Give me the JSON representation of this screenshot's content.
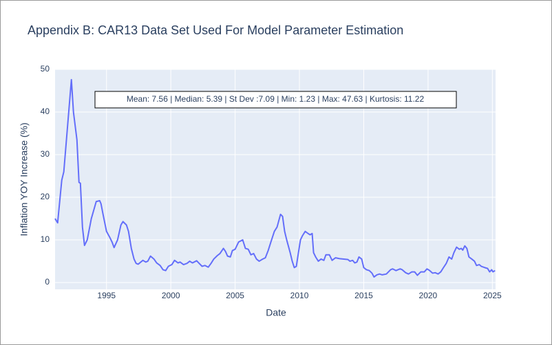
{
  "chart_data": {
    "type": "line",
    "title": "Appendix B: CAR13 Data Set Used For Model Parameter Estimation",
    "x_label": "Date",
    "y_label": "Inflation YOY Increase (%)",
    "annotation": "Mean: 7.56 | Median: 5.39 | St Dev :7.09 | Min: 1.23 | Max: 47.63 | Kurtosis: 11.22",
    "color": "#636efa",
    "grid": true,
    "xlim": [
      1991,
      2025.25
    ],
    "xticks": [
      1995,
      2000,
      2005,
      2010,
      2015,
      2020,
      2025
    ],
    "ylim": [
      -1.6,
      50
    ],
    "yticks": [
      0,
      10,
      20,
      30,
      40,
      50
    ],
    "x": [
      1991.0,
      1991.2,
      1991.52,
      1991.68,
      1992.27,
      1992.43,
      1992.7,
      1992.86,
      1992.97,
      1993.13,
      1993.29,
      1993.5,
      1993.82,
      1994.2,
      1994.47,
      1994.57,
      1994.73,
      1995.0,
      1995.27,
      1995.43,
      1995.59,
      1995.86,
      1996.12,
      1996.28,
      1996.55,
      1996.71,
      1996.93,
      1997.14,
      1997.3,
      1997.46,
      1997.83,
      1998.05,
      1998.21,
      1998.42,
      1998.69,
      1998.9,
      1999.17,
      1999.39,
      1999.6,
      1999.81,
      2000.08,
      2000.29,
      2000.56,
      2000.72,
      2000.99,
      2001.26,
      2001.47,
      2001.68,
      2002.01,
      2002.17,
      2002.43,
      2002.65,
      2002.91,
      2003.13,
      2003.34,
      2003.61,
      2003.82,
      2004.09,
      2004.25,
      2004.41,
      2004.63,
      2004.79,
      2005.0,
      2005.27,
      2005.59,
      2005.8,
      2006.02,
      2006.23,
      2006.44,
      2006.66,
      2006.87,
      2007.14,
      2007.35,
      2007.57,
      2007.78,
      2008.05,
      2008.26,
      2008.53,
      2008.69,
      2008.85,
      2009.01,
      2009.28,
      2009.44,
      2009.6,
      2009.76,
      2009.87,
      2010.08,
      2010.24,
      2010.45,
      2010.67,
      2010.83,
      2010.99,
      2011.1,
      2011.26,
      2011.47,
      2011.68,
      2011.9,
      2012.06,
      2012.33,
      2012.54,
      2012.81,
      2013.13,
      2013.45,
      2013.77,
      2013.93,
      2014.14,
      2014.3,
      2014.47,
      2014.63,
      2014.84,
      2015.0,
      2015.21,
      2015.43,
      2015.64,
      2015.8,
      2016.02,
      2016.23,
      2016.44,
      2016.76,
      2017.09,
      2017.25,
      2017.51,
      2017.83,
      2017.99,
      2018.26,
      2018.48,
      2018.74,
      2018.96,
      2019.17,
      2019.44,
      2019.71,
      2019.92,
      2020.13,
      2020.35,
      2020.56,
      2020.78,
      2020.99,
      2021.2,
      2021.42,
      2021.63,
      2021.84,
      2022.01,
      2022.22,
      2022.43,
      2022.59,
      2022.7,
      2022.86,
      2023.02,
      2023.18,
      2023.4,
      2023.61,
      2023.77,
      2023.98,
      2024.14,
      2024.41,
      2024.63,
      2024.79,
      2024.95,
      2025.05,
      2025.21
    ],
    "values": [
      15,
      14,
      24,
      26,
      47.6,
      40,
      33.5,
      23.5,
      23.3,
      13,
      8.7,
      10,
      15,
      19,
      19.2,
      18.5,
      16,
      12,
      10.5,
      9.5,
      8.2,
      10,
      13.5,
      14.3,
      13.5,
      12,
      8,
      5.5,
      4.5,
      4.3,
      5.2,
      4.8,
      5.0,
      6.2,
      5.5,
      4.6,
      4.0,
      3.0,
      2.8,
      3.8,
      4.2,
      5.2,
      4.6,
      4.8,
      4.2,
      4.5,
      5.0,
      4.6,
      5.1,
      4.6,
      3.8,
      4.0,
      3.6,
      4.5,
      5.5,
      6.3,
      6.8,
      8.0,
      7.3,
      6.2,
      6.0,
      7.5,
      7.8,
      9.5,
      10.0,
      8.0,
      7.8,
      6.5,
      6.8,
      5.5,
      5.0,
      5.5,
      5.8,
      7.5,
      9.5,
      12,
      13,
      16,
      15.5,
      12,
      10,
      7,
      5,
      3.5,
      3.8,
      6,
      10,
      11,
      12,
      11.5,
      11.2,
      11.5,
      7,
      6,
      5,
      5.5,
      5.2,
      6.5,
      6.5,
      5.2,
      5.8,
      5.6,
      5.5,
      5.4,
      5.0,
      5.2,
      4.6,
      4.8,
      6.0,
      5.5,
      3.5,
      3.0,
      2.8,
      2.2,
      1.3,
      1.8,
      2.0,
      1.8,
      2.0,
      3.0,
      3.2,
      2.8,
      3.2,
      3.0,
      2.3,
      2.0,
      2.5,
      2.5,
      1.7,
      2.5,
      2.5,
      3.2,
      2.8,
      2.2,
      2.3,
      2.0,
      2.5,
      3.5,
      4.5,
      6.0,
      5.5,
      7.0,
      8.3,
      7.8,
      8.0,
      7.6,
      8.6,
      8.0,
      6.0,
      5.5,
      5.0,
      4.0,
      4.2,
      3.8,
      3.5,
      3.3,
      2.5,
      3.0,
      2.5,
      2.8
    ]
  }
}
